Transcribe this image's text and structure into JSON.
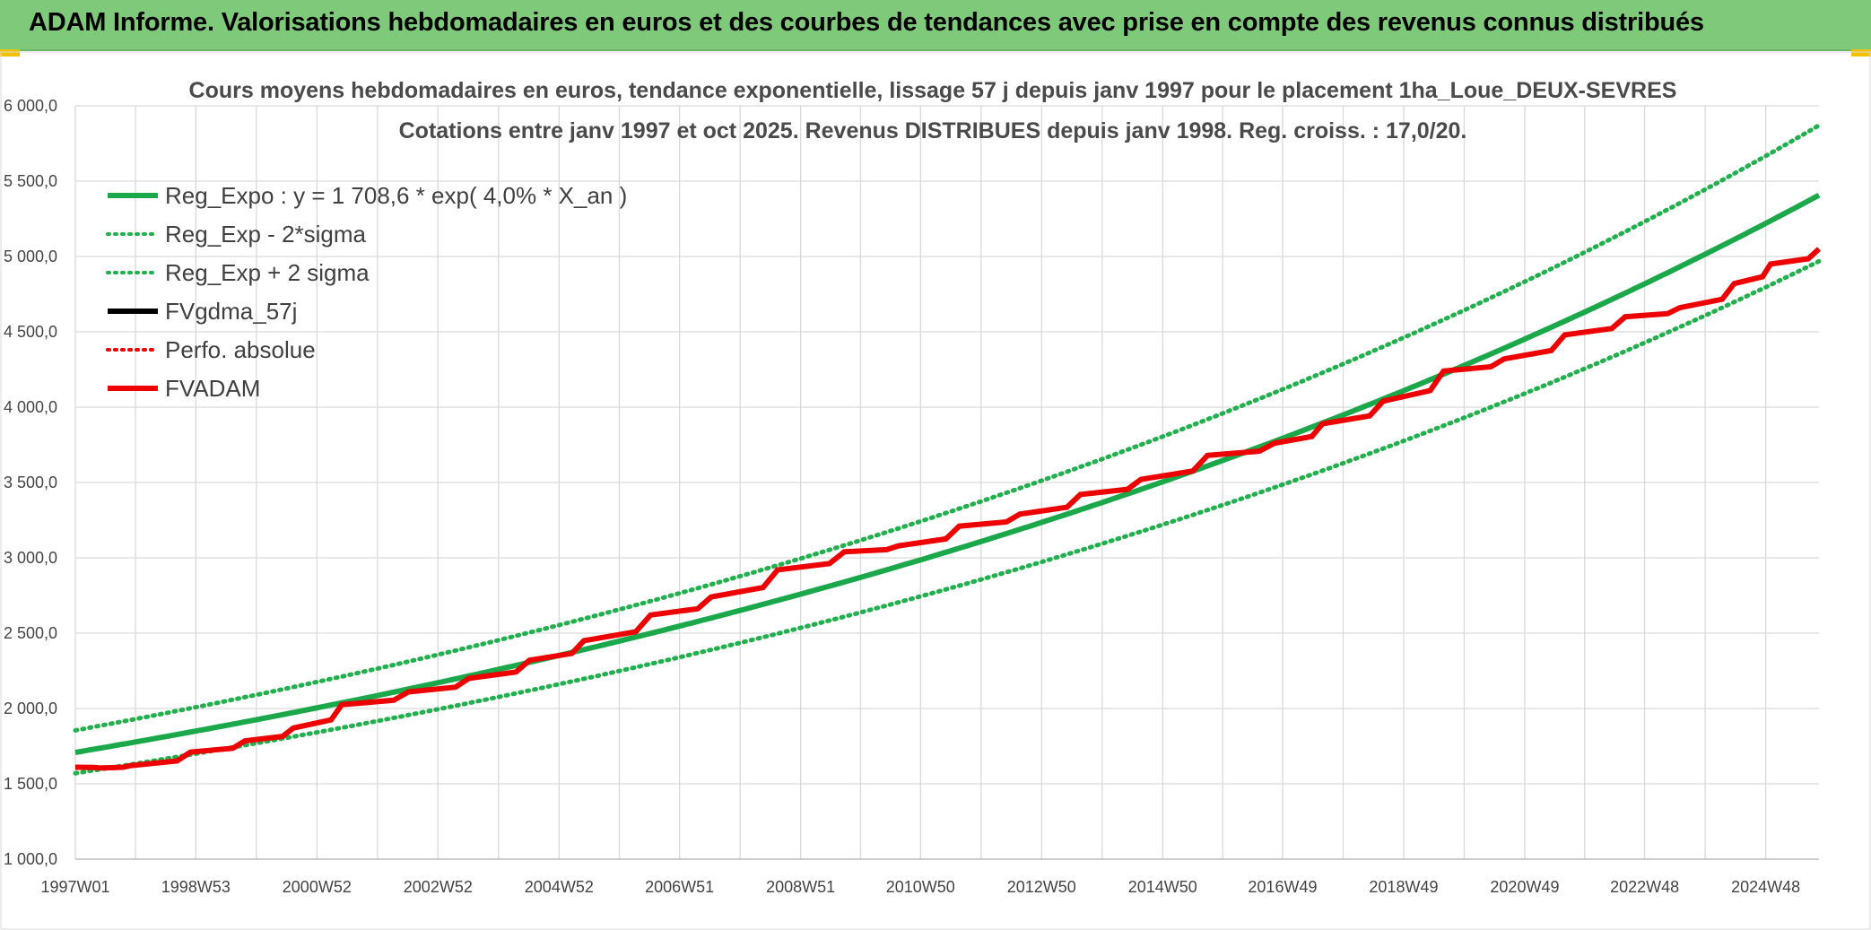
{
  "banner": {
    "title": "ADAM Informe. Valorisations hebdomadaires en euros et des courbes de tendances avec prise en compte des revenus connus distribués"
  },
  "colors": {
    "banner_bg": "#7fc97a",
    "reg_green": "#1aa84a",
    "sigma_green": "#22b04e",
    "fv_black": "#000000",
    "adam_red": "#ee0000"
  },
  "chart_data": {
    "type": "line",
    "title": "Cours moyens hebdomadaires en euros, tendance exponentielle, lissage 57 j depuis janv 1997 pour le placement 1ha_Loue_DEUX-SEVRES",
    "subtitle": "Cotations entre janv 1997 et oct 2025. Revenus DISTRIBUES depuis janv 1998. Reg. croiss. : 17,0/20.",
    "xlabel": "",
    "ylabel": "",
    "x_range_years": [
      1997.0,
      2025.8
    ],
    "ylim": [
      1000,
      6000
    ],
    "yticks": [
      1000,
      1500,
      2000,
      2500,
      3000,
      3500,
      4000,
      4500,
      5000,
      5500,
      6000
    ],
    "ytick_labels": [
      "1 000,0",
      "1 500,0",
      "2 000,0",
      "2 500,0",
      "3 000,0",
      "3 500,0",
      "4 000,0",
      "4 500,0",
      "5 000,0",
      "5 500,0",
      "6 000,0"
    ],
    "xtick_years": [
      1997.0,
      1998.99,
      2000.99,
      2002.99,
      2004.99,
      2006.98,
      2008.98,
      2010.96,
      2012.96,
      2014.96,
      2016.94,
      2018.94,
      2020.94,
      2022.92,
      2024.92
    ],
    "xtick_labels": [
      "1997W01",
      "1998W53",
      "2000W52",
      "2002W52",
      "2004W52",
      "2006W51",
      "2008W51",
      "2010W50",
      "2012W50",
      "2014W50",
      "2016W49",
      "2018W49",
      "2020W49",
      "2022W48",
      "2024W48"
    ],
    "grid": true,
    "legend_position": "top-left",
    "legend": [
      {
        "label": "Reg_Expo : y = 1 708,6 * exp( 4,0% *  X_an )",
        "style": "solid",
        "color": "#1aa84a"
      },
      {
        "label": "Reg_Exp - 2*sigma",
        "style": "dotted",
        "color": "#22b04e"
      },
      {
        "label": "Reg_Exp + 2 sigma",
        "style": "dotted",
        "color": "#22b04e"
      },
      {
        "label": "FVgdma_57j",
        "style": "solid",
        "color": "#000000"
      },
      {
        "label": "Perfo. absolue",
        "style": "dotted",
        "color": "#ee0000"
      },
      {
        "label": "FVADAM",
        "style": "solid",
        "color": "#ee0000"
      }
    ],
    "series": [
      {
        "name": "Reg_Expo",
        "type": "exponential",
        "a": 1708.6,
        "rate": 0.04,
        "x0": 1997.0
      },
      {
        "name": "Reg_Exp - 2*sigma",
        "type": "exponential",
        "a": 1570,
        "rate": 0.04,
        "x0": 1997.0
      },
      {
        "name": "Reg_Exp + 2 sigma",
        "type": "exponential",
        "a": 1855,
        "rate": 0.04,
        "x0": 1997.0
      },
      {
        "name": "FVADAM",
        "x": [
          1997.0,
          1997.4,
          1997.9,
          1998.9,
          1999.8,
          2000.6,
          2001.4,
          2002.5,
          2003.5,
          2004.5,
          2005.4,
          2006.5,
          2007.5,
          2008.6,
          2009.7,
          2010.6,
          2011.6,
          2012.6,
          2013.6,
          2014.6,
          2015.7,
          2016.8,
          2017.6,
          2018.6,
          2019.6,
          2020.6,
          2021.6,
          2022.6,
          2023.5,
          2024.4,
          2025.0,
          2025.8
        ],
        "y": [
          1610,
          1605,
          1620,
          1710,
          1785,
          1870,
          2025,
          2110,
          2200,
          2320,
          2450,
          2620,
          2740,
          2920,
          3040,
          3080,
          3210,
          3290,
          3420,
          3520,
          3680,
          3760,
          3890,
          4040,
          4240,
          4320,
          4480,
          4600,
          4660,
          4820,
          4950,
          5050
        ]
      }
    ]
  }
}
